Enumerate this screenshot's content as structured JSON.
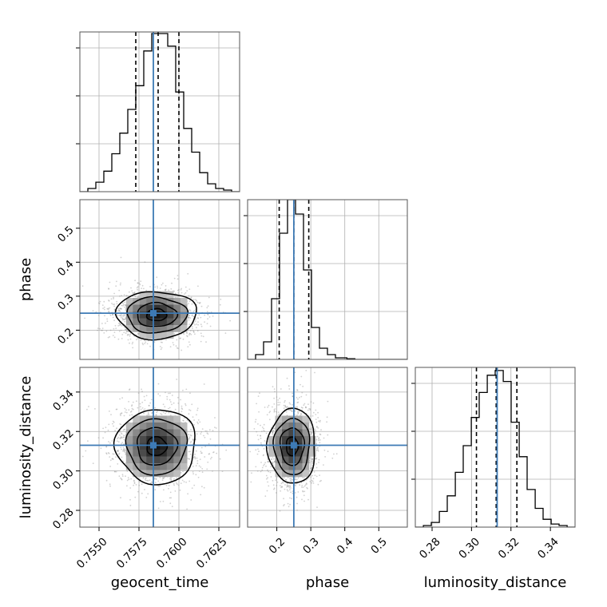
{
  "colors": {
    "truth": "#3d7ab5",
    "hist": "#000000",
    "quantile": "#000000",
    "grid": "#b0b0b0",
    "scatter": "#9a9a9a"
  },
  "chart_data": {
    "type": "corner",
    "parameters": [
      "geocent_time",
      "phase",
      "luminosity_distance"
    ],
    "axis_labels": {
      "geocent_time": "geocent_time",
      "phase": "phase",
      "luminosity_distance": "luminosity_distance"
    },
    "ranges": {
      "geocent_time": [
        0.7538,
        0.7638
      ],
      "phase": [
        0.114,
        0.584
      ],
      "luminosity_distance": [
        0.2715,
        0.3525
      ]
    },
    "ticks": {
      "geocent_time": {
        "values": [
          0.755,
          0.7575,
          0.76,
          0.7625
        ],
        "labels": [
          "0.7550",
          "0.7575",
          "0.7600",
          "0.7625"
        ]
      },
      "phase": {
        "values": [
          0.2,
          0.3,
          0.4,
          0.5
        ],
        "labels": [
          "0.2",
          "0.3",
          "0.4",
          "0.5"
        ]
      },
      "luminosity_distance": {
        "values": [
          0.28,
          0.3,
          0.32,
          0.34
        ],
        "labels": [
          "0.28",
          "0.30",
          "0.32",
          "0.34"
        ]
      }
    },
    "truths": {
      "geocent_time": 0.7584,
      "phase": 0.25,
      "luminosity_distance": 0.313
    },
    "quantiles": {
      "geocent_time": [
        0.7573,
        0.7587,
        0.76
      ],
      "phase": [
        0.207,
        0.25,
        0.294
      ],
      "luminosity_distance": [
        0.3025,
        0.3125,
        0.323
      ]
    },
    "histograms": {
      "geocent_time": {
        "bin_edges": [
          0.7538,
          0.7543,
          0.7548,
          0.7553,
          0.7558,
          0.7563,
          0.7568,
          0.7573,
          0.7578,
          0.7583,
          0.7588,
          0.7593,
          0.7598,
          0.7603,
          0.7608,
          0.7613,
          0.7618,
          0.7623,
          0.7628,
          0.7633,
          0.7638
        ],
        "counts": [
          0,
          2,
          6,
          13,
          24,
          37,
          52,
          67,
          89,
          100,
          100,
          92,
          63,
          40,
          25,
          12,
          5,
          2,
          1,
          0
        ],
        "ylim": [
          0,
          101
        ]
      },
      "phase": {
        "bin_edges": [
          0.114,
          0.1375,
          0.161,
          0.1845,
          0.208,
          0.2315,
          0.255,
          0.2785,
          0.302,
          0.3255,
          0.349,
          0.3725,
          0.406,
          0.4295,
          0.453,
          0.4765,
          0.5,
          0.5235,
          0.547,
          0.584
        ],
        "counts": [
          0,
          3,
          11,
          38,
          79,
          100,
          91,
          56,
          20,
          7,
          3,
          1,
          0.4,
          0,
          0,
          0,
          0,
          0,
          0
        ],
        "ylim": [
          0,
          100
        ]
      },
      "luminosity_distance": {
        "bin_edges": [
          0.2715,
          0.2756,
          0.2796,
          0.2837,
          0.2877,
          0.2918,
          0.2958,
          0.2999,
          0.3039,
          0.308,
          0.312,
          0.3161,
          0.3201,
          0.3242,
          0.3282,
          0.3323,
          0.3363,
          0.3404,
          0.3444,
          0.3485,
          0.3525
        ],
        "counts": [
          0,
          1,
          3,
          10,
          20,
          35,
          52,
          70,
          86,
          97,
          100,
          93,
          67,
          45,
          24,
          12,
          5,
          2,
          1,
          0
        ],
        "ylim": [
          0,
          102
        ]
      }
    },
    "pairs": [
      {
        "x": "geocent_time",
        "y": "phase",
        "center": [
          0.7586,
          0.245
        ],
        "sigma": [
          0.00125,
          0.035
        ]
      },
      {
        "x": "geocent_time",
        "y": "luminosity_distance",
        "center": [
          0.7586,
          0.3125
        ],
        "sigma": [
          0.00125,
          0.0095
        ]
      },
      {
        "x": "phase",
        "y": "luminosity_distance",
        "center": [
          0.245,
          0.3125
        ],
        "sigma": [
          0.035,
          0.0095
        ]
      }
    ]
  }
}
